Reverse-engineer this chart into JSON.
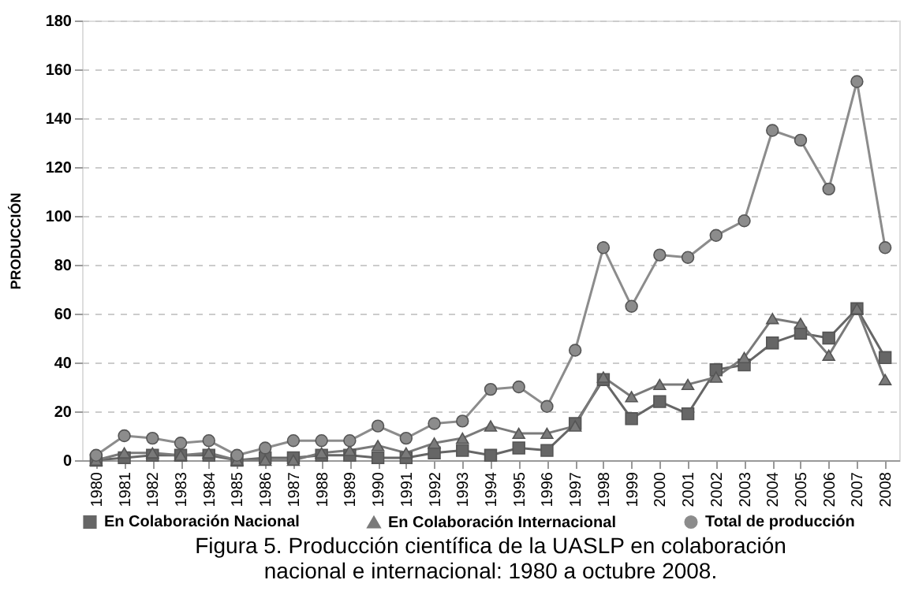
{
  "chart_data": {
    "type": "line",
    "ylabel": "PRODUCCIÓN",
    "categories": [
      "1980",
      "1981",
      "1982",
      "1983",
      "1984",
      "1985",
      "1986",
      "1987",
      "1988",
      "1989",
      "1990",
      "1991",
      "1992",
      "1993",
      "1994",
      "1995",
      "1996",
      "1997",
      "1998",
      "1999",
      "2000",
      "2001",
      "2002",
      "2003",
      "2004",
      "2005",
      "2006",
      "2007",
      "2008"
    ],
    "series": [
      {
        "name": "En Colaboración Nacional",
        "color": "#666666",
        "marker": "square",
        "values": [
          0,
          1,
          2,
          2,
          2,
          0,
          1,
          1,
          2,
          2,
          1,
          1,
          3,
          4,
          2,
          5,
          4,
          15,
          33,
          17,
          24,
          19,
          37,
          39,
          48,
          52,
          50,
          62,
          42
        ]
      },
      {
        "name": "En Colaboración Internacional",
        "color": "#7a7a7a",
        "marker": "triangle",
        "values": [
          0,
          3,
          3,
          2,
          3,
          0,
          0,
          0,
          3,
          4,
          6,
          3,
          7,
          9,
          14,
          11,
          11,
          14,
          34,
          26,
          31,
          31,
          34,
          42,
          58,
          56,
          43,
          62,
          33
        ]
      },
      {
        "name": "Total de producción",
        "color": "#8c8c8c",
        "marker": "circle",
        "values": [
          2,
          10,
          9,
          7,
          8,
          2,
          5,
          8,
          8,
          8,
          14,
          9,
          15,
          16,
          29,
          30,
          22,
          45,
          87,
          63,
          84,
          83,
          92,
          98,
          135,
          131,
          111,
          155,
          87
        ]
      }
    ],
    "ylim": [
      0,
      180
    ],
    "yticks": [
      0,
      20,
      40,
      60,
      80,
      100,
      120,
      140,
      160,
      180
    ],
    "grid": "y",
    "legend": "bottom",
    "line_style": "solid",
    "annotations": [
      "Figura 5. Producción científica de la UASLP en colaboración",
      "nacional e internacional: 1980 a octubre 2008."
    ]
  }
}
